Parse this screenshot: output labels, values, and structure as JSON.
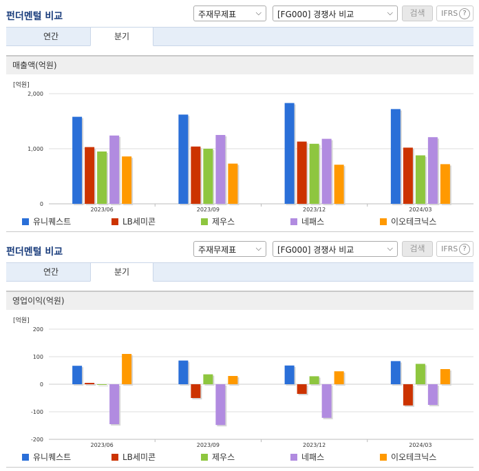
{
  "panels": [
    {
      "section_title": "펀더멘털 비교",
      "select_item": "주재무제표",
      "select_peer": "[FG000] 경쟁사 비교",
      "search_label": "검색",
      "ifrs_label": "IFRS",
      "help_label": "?",
      "tabs": [
        "연간",
        "분기"
      ],
      "active_tab": "분기",
      "chart_title": "매출액(억원)",
      "unit": "[억원]"
    },
    {
      "section_title": "펀더멘털 비교",
      "select_item": "주재무제표",
      "select_peer": "[FG000] 경쟁사 비교",
      "search_label": "검색",
      "ifrs_label": "IFRS",
      "help_label": "?",
      "tabs": [
        "연간",
        "분기"
      ],
      "active_tab": "분기",
      "chart_title": "영업이익(억원)",
      "unit": "[억원]"
    }
  ],
  "chart_data": [
    {
      "type": "bar",
      "title": "매출액(억원)",
      "ylabel": "[억원]",
      "ylim": [
        0,
        2000
      ],
      "yticks": [
        0,
        1000,
        2000
      ],
      "ytick_labels": [
        "0",
        "1,000",
        "2,000"
      ],
      "categories": [
        "2023/06",
        "2023/09",
        "2023/12",
        "2024/03"
      ],
      "grid": "horizontal",
      "legend": "bottom",
      "series": [
        {
          "name": "유니퀘스트",
          "color": "#2a6fd8",
          "values": [
            1580,
            1620,
            1830,
            1720
          ]
        },
        {
          "name": "LB세미콘",
          "color": "#cc3300",
          "values": [
            1030,
            1040,
            1130,
            1020
          ]
        },
        {
          "name": "제우스",
          "color": "#8ec63f",
          "values": [
            950,
            1000,
            1090,
            880
          ]
        },
        {
          "name": "네패스",
          "color": "#b18be0",
          "values": [
            1240,
            1250,
            1180,
            1210
          ]
        },
        {
          "name": "이오테크닉스",
          "color": "#ff9900",
          "values": [
            860,
            730,
            710,
            720
          ]
        }
      ]
    },
    {
      "type": "bar",
      "title": "영업이익(억원)",
      "ylabel": "[억원]",
      "ylim": [
        -200,
        200
      ],
      "yticks": [
        -200,
        -100,
        0,
        100,
        200
      ],
      "ytick_labels": [
        "-200",
        "-100",
        "0",
        "100",
        "200"
      ],
      "categories": [
        "2023/06",
        "2023/09",
        "2023/12",
        "2024/03"
      ],
      "grid": "horizontal",
      "legend": "bottom",
      "series": [
        {
          "name": "유니퀘스트",
          "color": "#2a6fd8",
          "values": [
            67,
            86,
            68,
            84
          ]
        },
        {
          "name": "LB세미콘",
          "color": "#cc3300",
          "values": [
            5,
            -50,
            -35,
            -77
          ]
        },
        {
          "name": "제우스",
          "color": "#8ec63f",
          "values": [
            -1,
            36,
            29,
            74
          ]
        },
        {
          "name": "네패스",
          "color": "#b18be0",
          "values": [
            -145,
            -148,
            -122,
            -75
          ]
        },
        {
          "name": "이오테크닉스",
          "color": "#ff9900",
          "values": [
            110,
            30,
            47,
            55
          ]
        }
      ]
    }
  ]
}
